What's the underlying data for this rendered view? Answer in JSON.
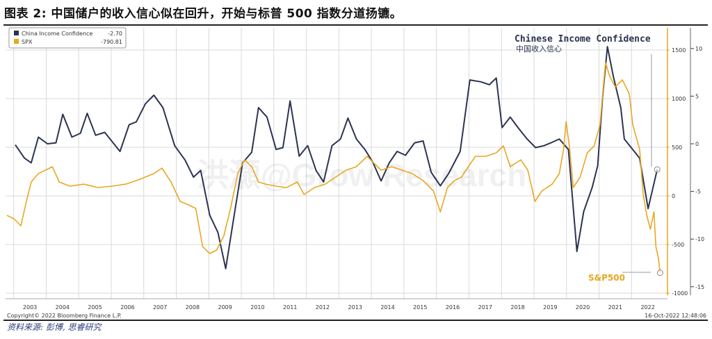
{
  "title": "图表 2: 中国储户的收入信心似在回升，开始与标普 500 指数分道扬镳。",
  "source": "资料来源: 彭博, 思睿研究",
  "copyright": "Copyright© 2022 Bloomberg Finance L.P.",
  "timestamp": "16-Oct-2022 12:48:06",
  "watermark": "洪灝@Grow Research",
  "annotations": {
    "china_label_en": "Chinese Income Confidence",
    "china_label_cn": "中国收入信心",
    "spx_label": "S&P500"
  },
  "colors": {
    "china": "#2b3350",
    "spx": "#e8a722",
    "grid": "#d9d9d9"
  },
  "chart_data": {
    "type": "line",
    "x_ticks": [
      "2003",
      "2004",
      "2005",
      "2006",
      "2007",
      "2008",
      "2009",
      "2010",
      "2011",
      "2012",
      "2013",
      "2014",
      "2015",
      "2016",
      "2017",
      "2018",
      "2019",
      "2020",
      "2021",
      "2022"
    ],
    "xlim": [
      2002.75,
      2023.0
    ],
    "legend": {
      "placement": "top-left",
      "entries": [
        {
          "name": "China Income Confidence",
          "value": "-2.70"
        },
        {
          "name": "SPX",
          "value": "-790.81"
        }
      ]
    },
    "left_axis": {
      "series": "SPX",
      "ylim": [
        -1000,
        1700
      ],
      "ticks": [
        "1500",
        "1000",
        "500",
        "0",
        "-500",
        "-1000"
      ],
      "tick_values": [
        1500,
        1000,
        500,
        0,
        -500,
        -1000
      ]
    },
    "right_axis": {
      "series": "China Income Confidence",
      "ylim": [
        -15,
        10.3
      ],
      "ticks": [
        "10",
        "5",
        "0",
        "-5",
        "-10",
        "-15"
      ],
      "tick_values": [
        10,
        5,
        0,
        -5,
        -10,
        -15
      ]
    },
    "grid": true,
    "series": [
      {
        "name": "China Income Confidence",
        "axis": "right",
        "points": [
          [
            2003.05,
            -0.1
          ],
          [
            2003.33,
            -1.5
          ],
          [
            2003.54,
            -2.0
          ],
          [
            2003.76,
            0.7
          ],
          [
            2004.04,
            0
          ],
          [
            2004.3,
            0.1
          ],
          [
            2004.51,
            3.1
          ],
          [
            2004.79,
            0.7
          ],
          [
            2005.05,
            1.1
          ],
          [
            2005.26,
            3.2
          ],
          [
            2005.52,
            0.9
          ],
          [
            2005.8,
            1.2
          ],
          [
            2006.27,
            -0.8
          ],
          [
            2006.55,
            2.0
          ],
          [
            2006.77,
            2.3
          ],
          [
            2007.05,
            4.2
          ],
          [
            2007.31,
            5.1
          ],
          [
            2007.59,
            3.8
          ],
          [
            2007.95,
            -0.2
          ],
          [
            2008.27,
            -1.7
          ],
          [
            2008.53,
            -3.5
          ],
          [
            2008.75,
            -2.8
          ],
          [
            2009.03,
            -7.5
          ],
          [
            2009.28,
            -9.3
          ],
          [
            2009.52,
            -13.1
          ],
          [
            2009.78,
            -7.5
          ],
          [
            2010.04,
            -2.0
          ],
          [
            2010.32,
            -0.9
          ],
          [
            2010.53,
            3.8
          ],
          [
            2010.79,
            2.8
          ],
          [
            2011.07,
            -0.6
          ],
          [
            2011.28,
            -0.4
          ],
          [
            2011.5,
            4.5
          ],
          [
            2011.78,
            -1.3
          ],
          [
            2012.04,
            -0.2
          ],
          [
            2012.3,
            -2.8
          ],
          [
            2012.53,
            -4.0
          ],
          [
            2012.79,
            -0.2
          ],
          [
            2013.05,
            0.5
          ],
          [
            2013.28,
            2.7
          ],
          [
            2013.54,
            0.5
          ],
          [
            2013.8,
            -0.6
          ],
          [
            2014.04,
            -1.9
          ],
          [
            2014.3,
            -3.9
          ],
          [
            2014.55,
            -2.0
          ],
          [
            2014.79,
            -0.8
          ],
          [
            2015.05,
            -1.2
          ],
          [
            2015.33,
            0.1
          ],
          [
            2015.59,
            0.3
          ],
          [
            2015.84,
            -3.0
          ],
          [
            2016.12,
            -4.4
          ],
          [
            2016.38,
            -3.1
          ],
          [
            2016.73,
            -0.8
          ],
          [
            2017.03,
            6.7
          ],
          [
            2017.37,
            6.5
          ],
          [
            2017.63,
            6.2
          ],
          [
            2017.84,
            6.9
          ],
          [
            2018.02,
            1.7
          ],
          [
            2018.27,
            2.8
          ],
          [
            2018.53,
            1.6
          ],
          [
            2018.79,
            0.5
          ],
          [
            2019.05,
            -0.4
          ],
          [
            2019.31,
            -0.2
          ],
          [
            2019.52,
            0.1
          ],
          [
            2019.78,
            0.5
          ],
          [
            2020.06,
            -0.6
          ],
          [
            2020.32,
            -11.3
          ],
          [
            2020.53,
            -7.1
          ],
          [
            2020.79,
            -4.6
          ],
          [
            2020.96,
            -2.3
          ],
          [
            2021.11,
            4.9
          ],
          [
            2021.26,
            10.2
          ],
          [
            2021.44,
            7.1
          ],
          [
            2021.67,
            3.8
          ],
          [
            2021.78,
            0.5
          ],
          [
            2021.99,
            -0.4
          ],
          [
            2022.25,
            -1.5
          ],
          [
            2022.51,
            -6.8
          ],
          [
            2022.79,
            -2.7
          ]
        ]
      },
      {
        "name": "SPX",
        "axis": "left",
        "points": [
          [
            2002.79,
            -200
          ],
          [
            2003.01,
            -236
          ],
          [
            2003.22,
            -307
          ],
          [
            2003.39,
            -57
          ],
          [
            2003.54,
            143
          ],
          [
            2003.76,
            229
          ],
          [
            2003.97,
            264
          ],
          [
            2004.19,
            300
          ],
          [
            2004.4,
            143
          ],
          [
            2004.73,
            100
          ],
          [
            2005.16,
            121
          ],
          [
            2005.59,
            86
          ],
          [
            2006.02,
            100
          ],
          [
            2006.45,
            121
          ],
          [
            2006.88,
            171
          ],
          [
            2007.31,
            229
          ],
          [
            2007.56,
            286
          ],
          [
            2007.84,
            143
          ],
          [
            2008.12,
            -57
          ],
          [
            2008.38,
            -93
          ],
          [
            2008.6,
            -129
          ],
          [
            2008.81,
            -521
          ],
          [
            2009.03,
            -593
          ],
          [
            2009.24,
            -557
          ],
          [
            2009.46,
            -414
          ],
          [
            2009.67,
            -129
          ],
          [
            2009.89,
            229
          ],
          [
            2010.1,
            371
          ],
          [
            2010.32,
            300
          ],
          [
            2010.53,
            143
          ],
          [
            2010.75,
            121
          ],
          [
            2011.07,
            100
          ],
          [
            2011.39,
            86
          ],
          [
            2011.72,
            143
          ],
          [
            2011.93,
            14
          ],
          [
            2012.25,
            86
          ],
          [
            2012.58,
            121
          ],
          [
            2012.9,
            193
          ],
          [
            2013.22,
            264
          ],
          [
            2013.54,
            300
          ],
          [
            2013.87,
            407
          ],
          [
            2014.08,
            336
          ],
          [
            2014.3,
            264
          ],
          [
            2014.62,
            300
          ],
          [
            2014.94,
            264
          ],
          [
            2015.26,
            229
          ],
          [
            2015.59,
            157
          ],
          [
            2015.91,
            50
          ],
          [
            2016.12,
            -164
          ],
          [
            2016.34,
            86
          ],
          [
            2016.55,
            157
          ],
          [
            2016.77,
            193
          ],
          [
            2016.98,
            300
          ],
          [
            2017.2,
            407
          ],
          [
            2017.52,
            407
          ],
          [
            2017.84,
            443
          ],
          [
            2018.06,
            514
          ],
          [
            2018.27,
            300
          ],
          [
            2018.6,
            371
          ],
          [
            2018.81,
            264
          ],
          [
            2019.03,
            -57
          ],
          [
            2019.24,
            50
          ],
          [
            2019.56,
            121
          ],
          [
            2019.78,
            229
          ],
          [
            2019.91,
            479
          ],
          [
            2019.99,
            764
          ],
          [
            2020.1,
            479
          ],
          [
            2020.21,
            86
          ],
          [
            2020.42,
            193
          ],
          [
            2020.64,
            443
          ],
          [
            2020.85,
            514
          ],
          [
            2021.03,
            729
          ],
          [
            2021.2,
            1371
          ],
          [
            2021.33,
            1229
          ],
          [
            2021.5,
            1121
          ],
          [
            2021.72,
            1193
          ],
          [
            2021.93,
            1050
          ],
          [
            2022.04,
            729
          ],
          [
            2022.25,
            479
          ],
          [
            2022.36,
            14
          ],
          [
            2022.47,
            -200
          ],
          [
            2022.58,
            -343
          ],
          [
            2022.69,
            -164
          ],
          [
            2022.75,
            -521
          ],
          [
            2022.83,
            -643
          ],
          [
            2022.88,
            -790.81
          ]
        ]
      }
    ]
  }
}
